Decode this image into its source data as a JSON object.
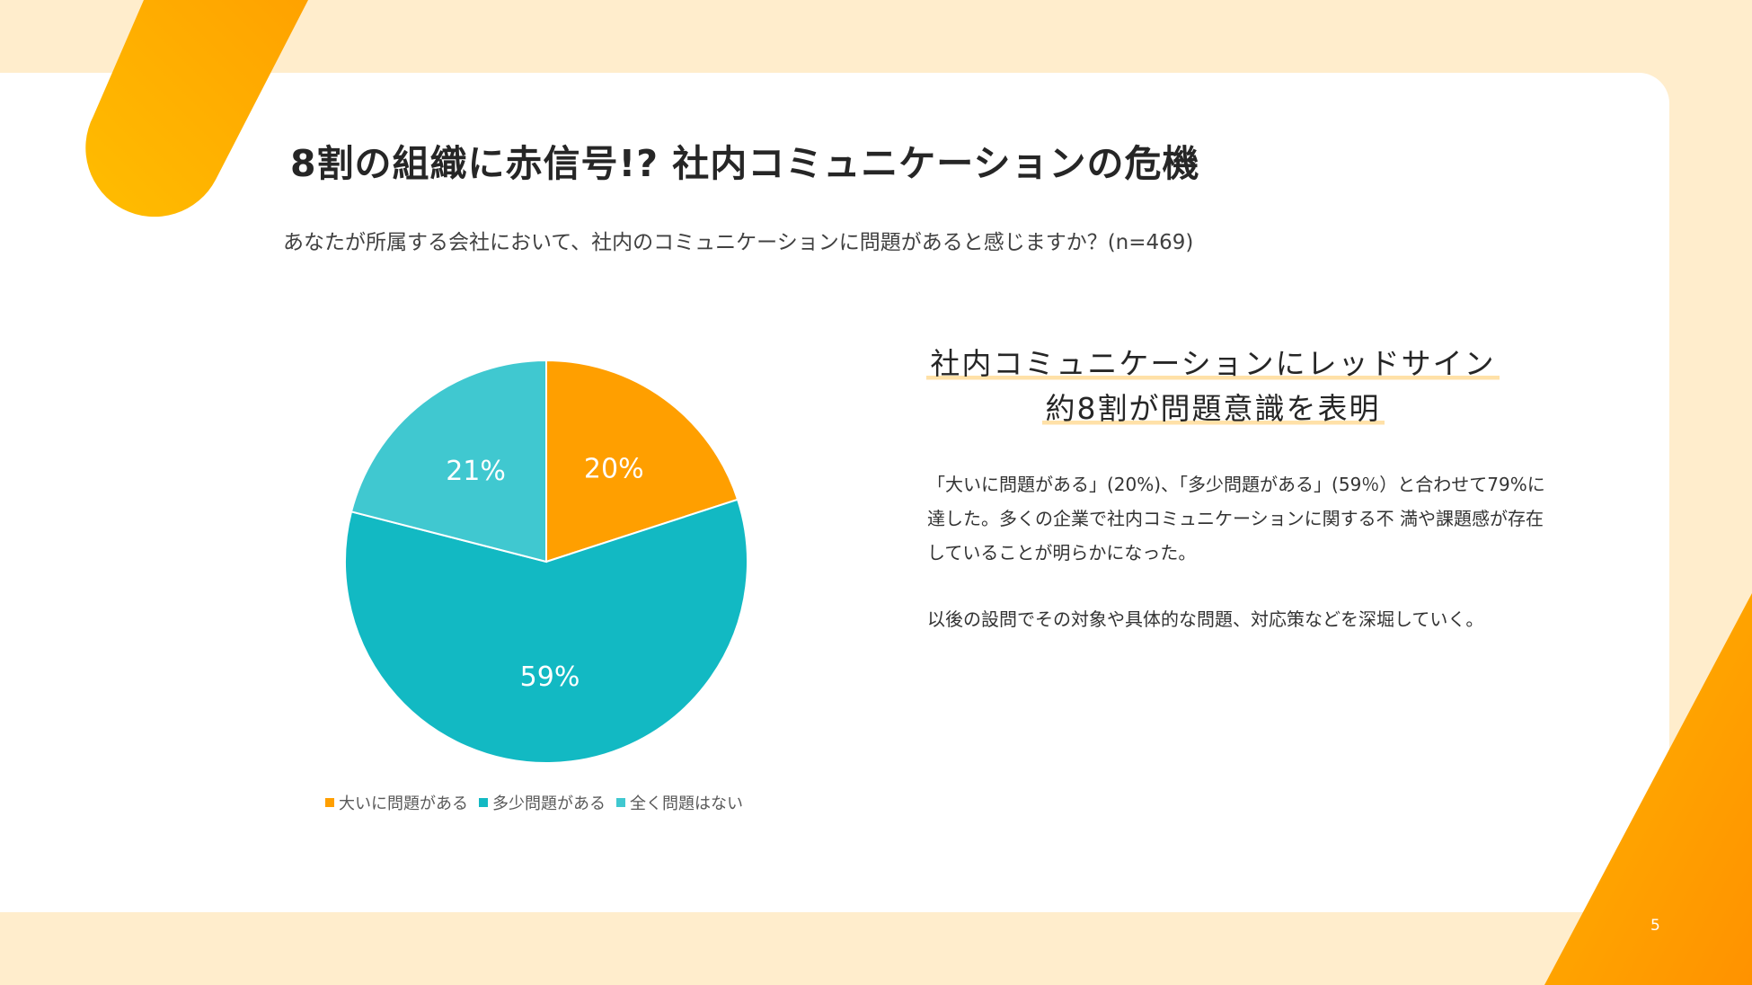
{
  "title": "8割の組織に赤信号!? 社内コミュニケーションの危機",
  "subtitle": "あなたが所属する会社において、社内のコミュニケーションに問題があると感じますか？(n=469)",
  "headline": {
    "line1": "社内コミュニケーションにレッドサイン",
    "line2": "約8割が問題意識を表明"
  },
  "body": {
    "paragraph1": "「大いに問題がある」(20%)、「多少問題がある」(59％）と合わせて79%に達した。多くの企業で社内コミュニケーションに関する不 満や課題感が存在していることが明らかになった。",
    "paragraph2": "以後の設問でその対象や具体的な問題、対応策などを深堀していく。"
  },
  "page_number": "5",
  "colors": {
    "accent_orange": "#ff9f00",
    "accent_yellow": "#ffb700",
    "frame_cream": "#ffedcc",
    "highlight": "#ffe1a8"
  },
  "chart_data": {
    "type": "pie",
    "categories": [
      "大いに問題がある",
      "多少問題がある",
      "全く問題はない"
    ],
    "values": [
      20,
      59,
      21
    ],
    "labels": [
      "20%",
      "59%",
      "21%"
    ],
    "colors": [
      "#ff9f00",
      "#12b9c3",
      "#40c8d0"
    ],
    "legend_position": "bottom"
  }
}
